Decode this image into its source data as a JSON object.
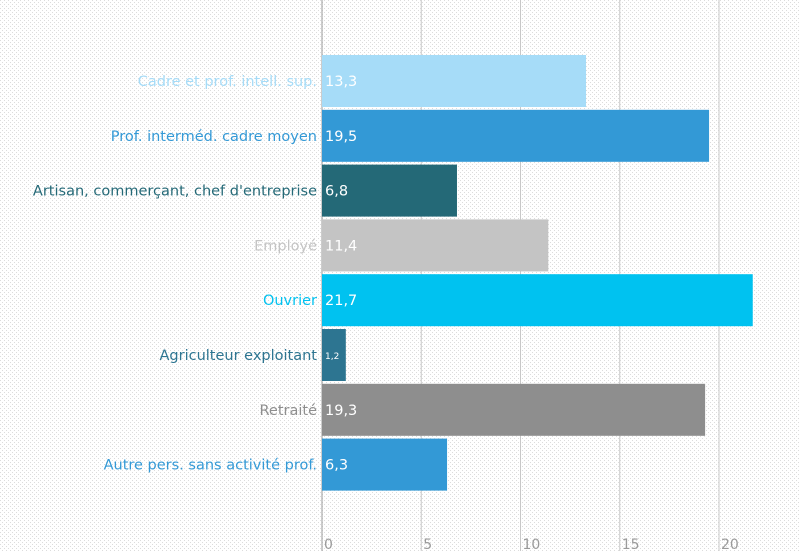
{
  "chart_data": {
    "type": "bar",
    "orientation": "horizontal",
    "title": "",
    "xlabel": "",
    "ylabel": "",
    "xlim": [
      0,
      22.5
    ],
    "x_ticks": [
      0,
      5,
      10,
      15,
      20
    ],
    "grid": true,
    "categories": [
      "Cadre et prof. intell. sup.",
      "Prof. interméd. cadre moyen",
      "Artisan, commerçant, chef d'entreprise",
      "Employé",
      "Ouvrier",
      "Agriculteur exploitant",
      "Retraité",
      "Autre pers. sans activité prof."
    ],
    "values": [
      13.3,
      19.5,
      6.8,
      11.4,
      21.7,
      1.2,
      19.3,
      6.3
    ],
    "value_labels": [
      "13,3",
      "19,5",
      "6,8",
      "11,4",
      "21,7",
      "1,2",
      "19,3",
      "6,3"
    ],
    "colors": [
      "#a6dcf8",
      "#3399d6",
      "#246977",
      "#c4c4c4",
      "#00c2f0",
      "#2d7591",
      "#8e8e8e",
      "#3399d6"
    ],
    "label_colors": [
      "#a6dcf8",
      "#3399d6",
      "#246977",
      "#c4c4c4",
      "#00c2f0",
      "#2d7591",
      "#8e8e8e",
      "#3399d6"
    ]
  }
}
